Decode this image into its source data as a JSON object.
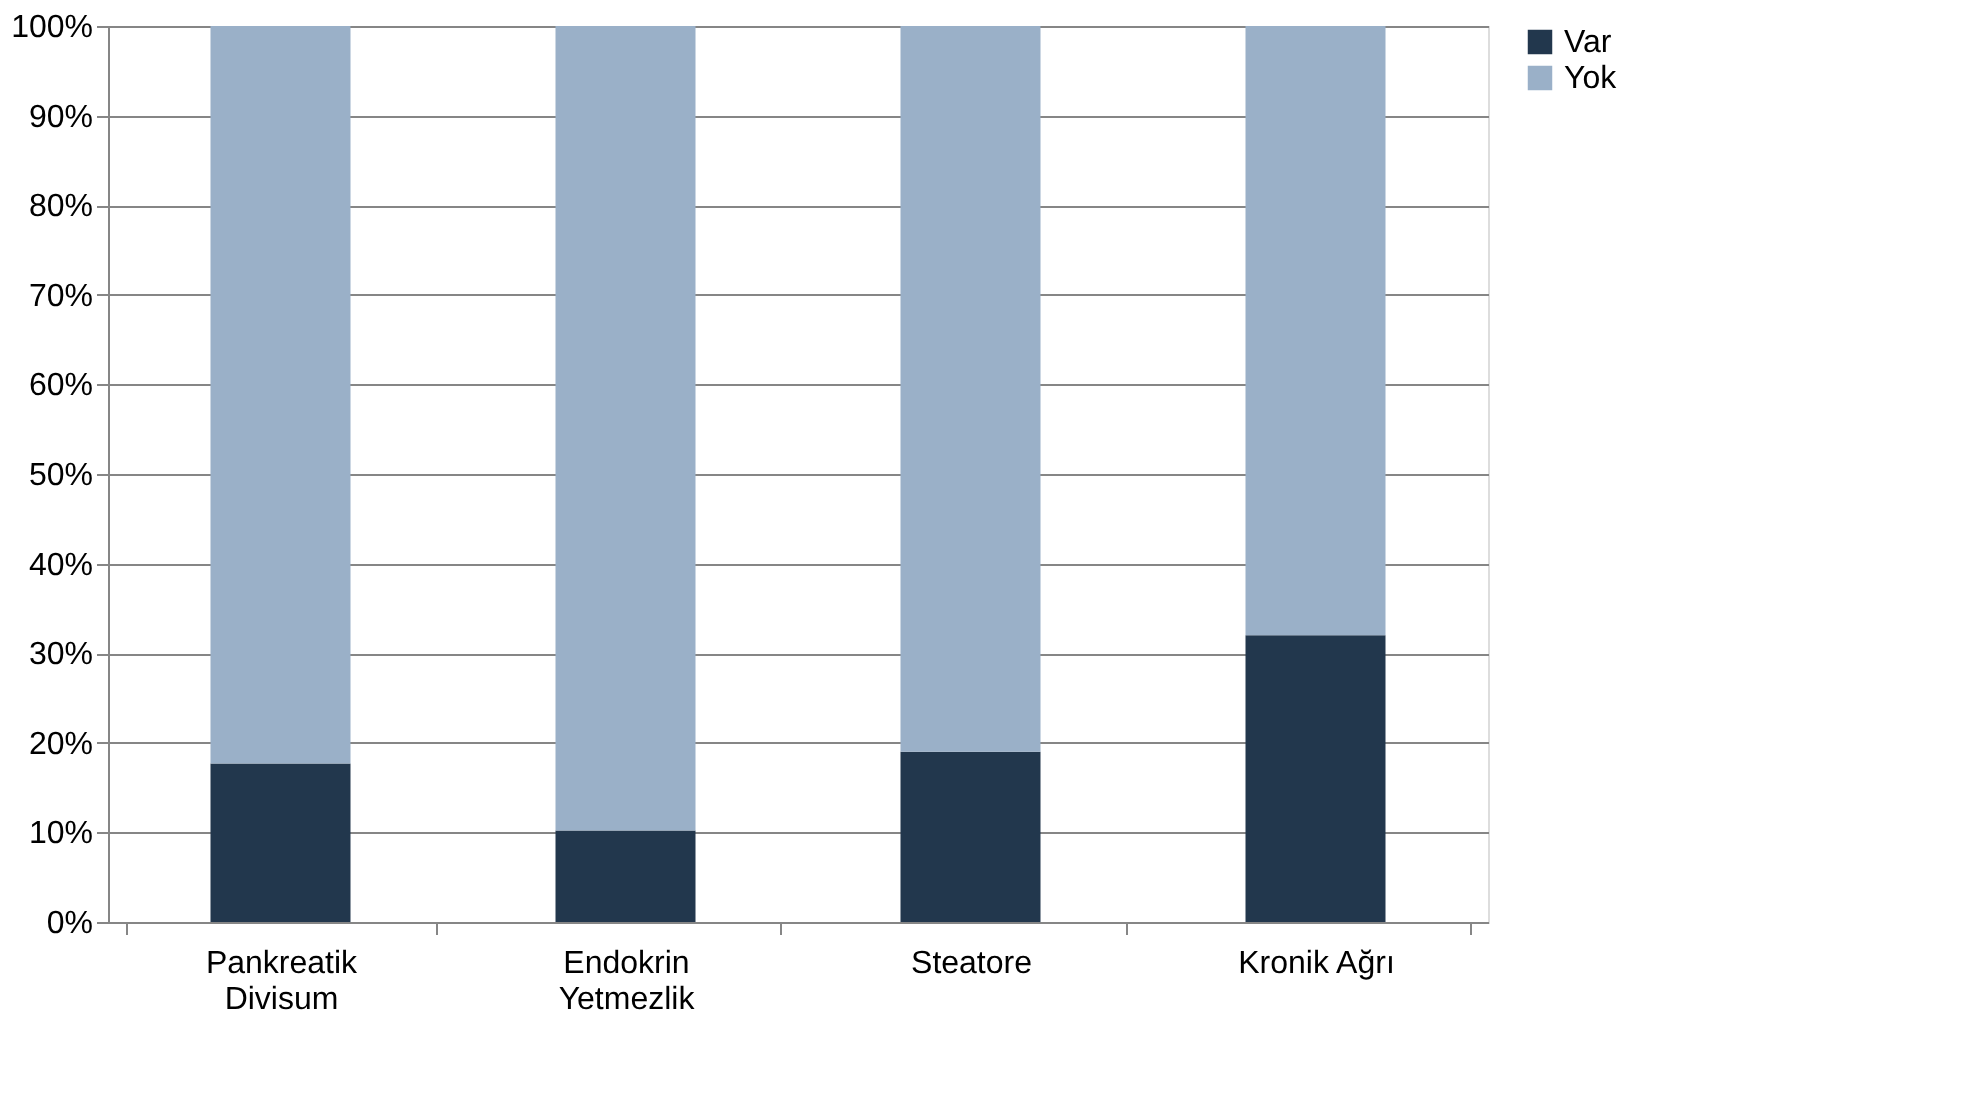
{
  "chart_data": {
    "type": "bar",
    "stacked": true,
    "categories": [
      "Pankreatik\nDivisum",
      "Endokrin\nYetmezlik",
      "Steatore",
      "Kronik Ağrı"
    ],
    "series": [
      {
        "name": "Var",
        "color": "#22374d",
        "values": [
          17.7,
          10.2,
          19.0,
          32.0
        ]
      },
      {
        "name": "Yok",
        "color": "#9ab0c8",
        "values": [
          82.3,
          89.8,
          81.0,
          68.0
        ]
      }
    ],
    "ylim": [
      0,
      100
    ],
    "yticks": [
      {
        "value": 0,
        "label": "0%"
      },
      {
        "value": 10,
        "label": "10%"
      },
      {
        "value": 20,
        "label": "20%"
      },
      {
        "value": 30,
        "label": "30%"
      },
      {
        "value": 40,
        "label": "40%"
      },
      {
        "value": 50,
        "label": "50%"
      },
      {
        "value": 60,
        "label": "60%"
      },
      {
        "value": 70,
        "label": "70%"
      },
      {
        "value": 80,
        "label": "80%"
      },
      {
        "value": 90,
        "label": "90%"
      },
      {
        "value": 100,
        "label": "100%"
      }
    ],
    "grid": "y",
    "legend": "right"
  }
}
